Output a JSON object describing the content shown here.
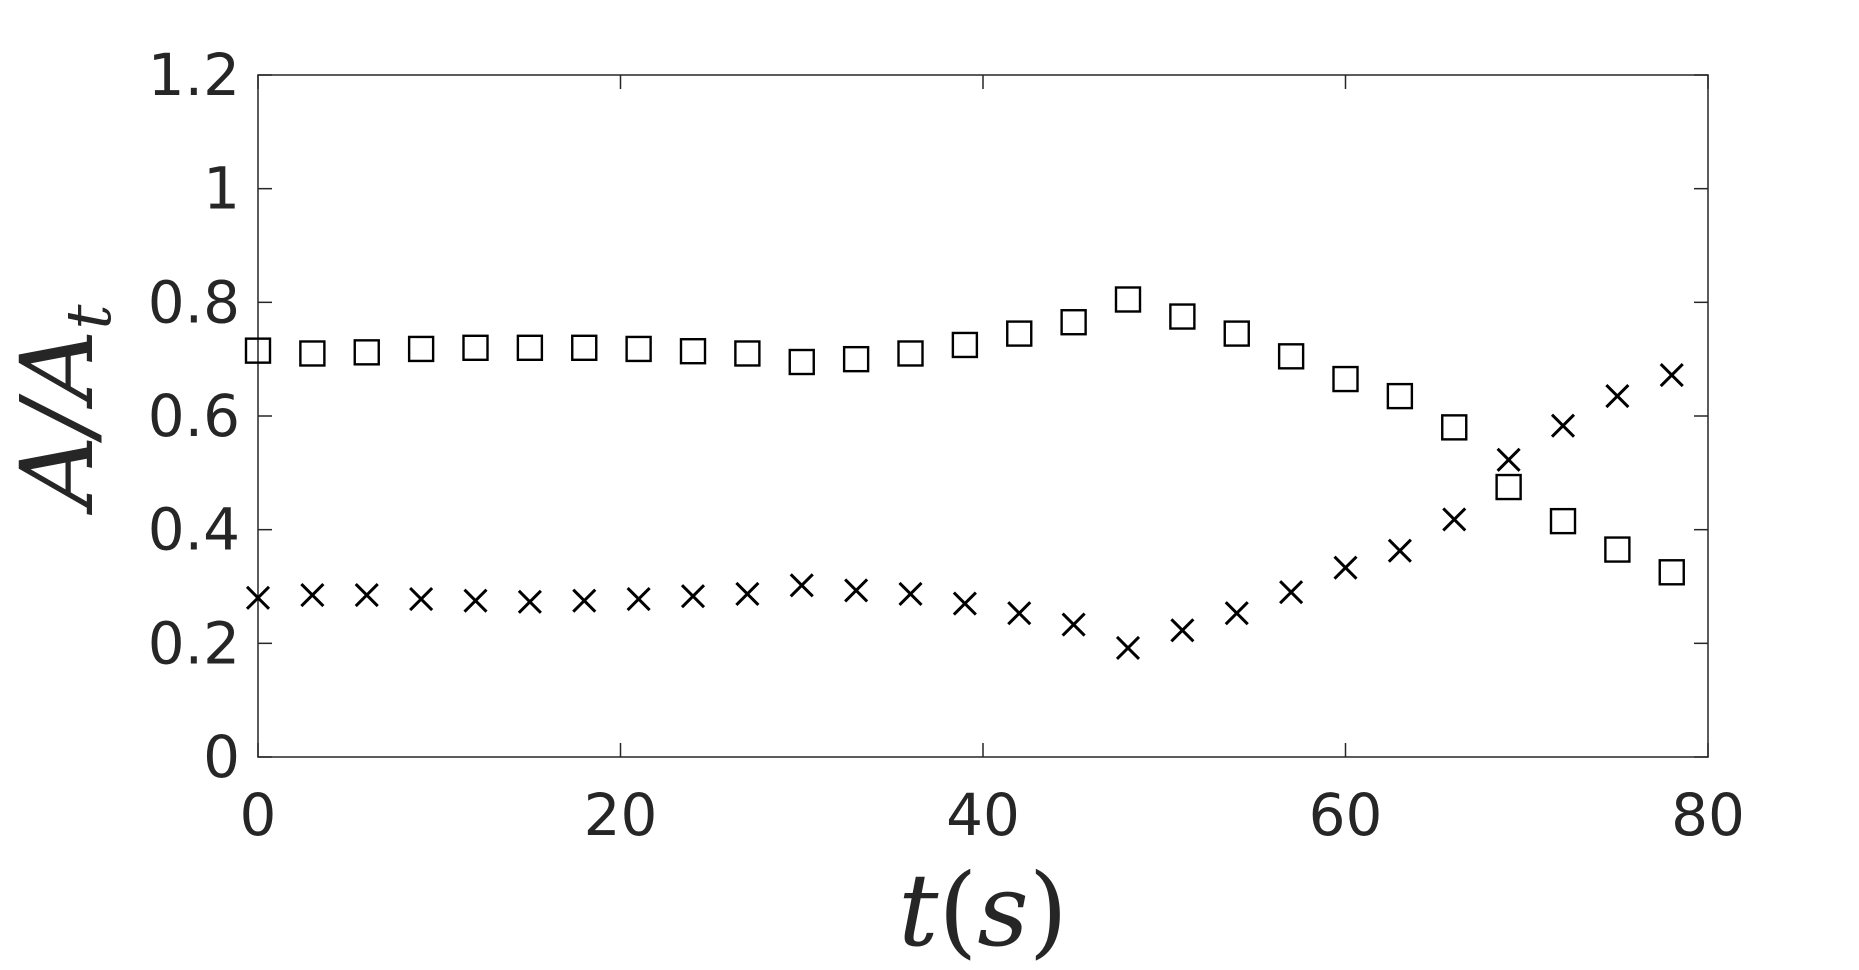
{
  "chart_data": {
    "type": "scatter",
    "title": "",
    "xlabel": "t(s)",
    "ylabel": "A/A_t",
    "xlabel_display": {
      "main": "t",
      "paren_open": "(",
      "var": "s",
      "paren_close": ")"
    },
    "ylabel_display": {
      "main": "A/A",
      "subscript": "t"
    },
    "xlim": [
      0,
      80
    ],
    "ylim": [
      0,
      1.2
    ],
    "xticks": [
      "0",
      "20",
      "40",
      "60",
      "80"
    ],
    "yticks": [
      "0",
      "0.2",
      "0.4",
      "0.6",
      "0.8",
      "1",
      "1.2"
    ],
    "grid": false,
    "legend": "none",
    "series": [
      {
        "marker": "square",
        "color": "#000000",
        "x": [
          0,
          3,
          6,
          9,
          12,
          15,
          18,
          21,
          24,
          27,
          30,
          33,
          36,
          39,
          42,
          45,
          48,
          51,
          54,
          57,
          60,
          63,
          66,
          69,
          72,
          75,
          78
        ],
        "y": [
          0.715,
          0.71,
          0.712,
          0.718,
          0.72,
          0.72,
          0.72,
          0.718,
          0.714,
          0.71,
          0.695,
          0.7,
          0.71,
          0.725,
          0.745,
          0.765,
          0.805,
          0.775,
          0.745,
          0.705,
          0.665,
          0.635,
          0.58,
          0.475,
          0.415,
          0.365,
          0.325
        ]
      },
      {
        "marker": "x",
        "color": "#000000",
        "x": [
          0,
          3,
          6,
          9,
          12,
          15,
          18,
          21,
          24,
          27,
          30,
          33,
          36,
          39,
          42,
          45,
          48,
          51,
          54,
          57,
          60,
          63,
          66,
          69,
          72,
          75,
          78
        ],
        "y": [
          0.28,
          0.285,
          0.285,
          0.278,
          0.275,
          0.273,
          0.275,
          0.278,
          0.283,
          0.287,
          0.302,
          0.293,
          0.287,
          0.27,
          0.253,
          0.233,
          0.192,
          0.223,
          0.253,
          0.29,
          0.333,
          0.363,
          0.418,
          0.523,
          0.583,
          0.635,
          0.672
        ]
      }
    ]
  }
}
